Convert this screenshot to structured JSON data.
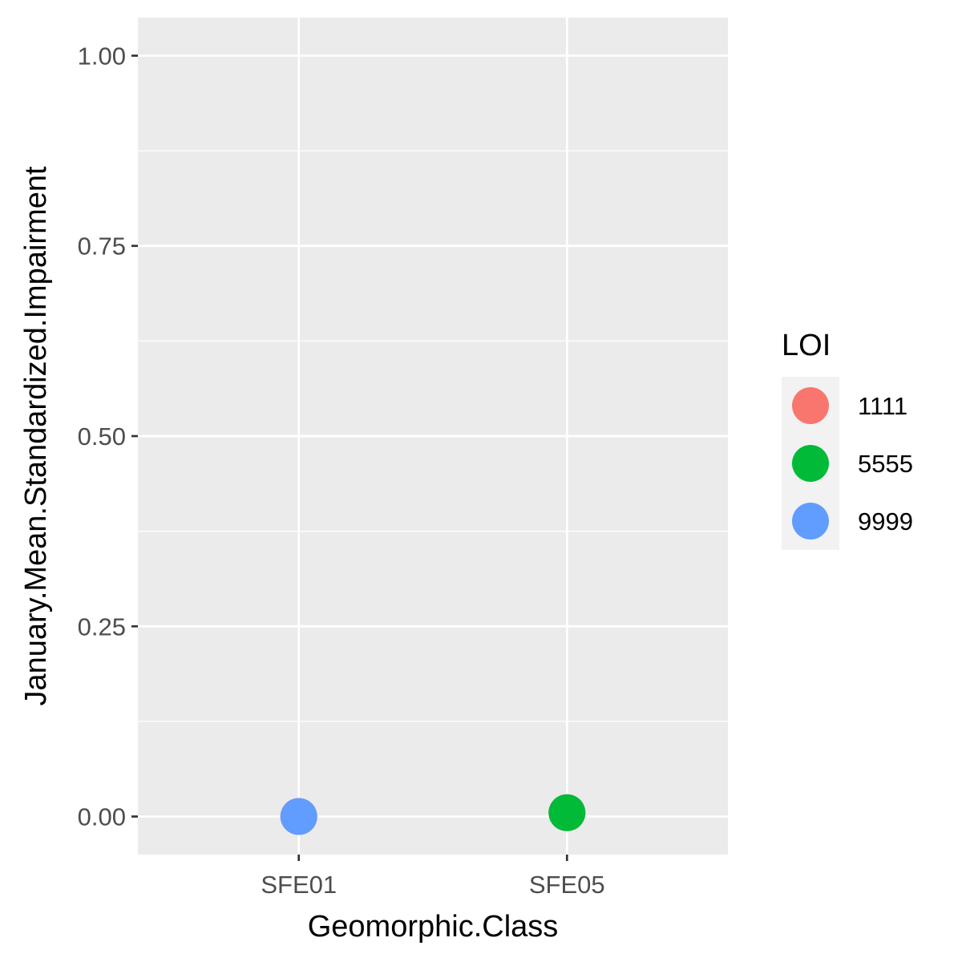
{
  "chart_data": {
    "type": "scatter",
    "xlabel": "Geomorphic.Class",
    "ylabel": "January.Mean.Standardized.Impairment",
    "x_categories": [
      "SFE01",
      "SFE05"
    ],
    "ylim": [
      -0.05,
      1.05
    ],
    "y_ticks": [
      0.0,
      0.25,
      0.5,
      0.75,
      1.0
    ],
    "y_tick_labels": [
      "0.00",
      "0.25",
      "0.50",
      "0.75",
      "1.00"
    ],
    "y_minor_ticks": [
      0.125,
      0.375,
      0.625,
      0.875
    ],
    "grid": true,
    "legend": {
      "title": "LOI",
      "placement": "right",
      "entries": [
        {
          "label": "1111",
          "color": "#F8766D"
        },
        {
          "label": "5555",
          "color": "#00BA38"
        },
        {
          "label": "9999",
          "color": "#619CFF"
        }
      ]
    },
    "points": [
      {
        "x": "SFE01",
        "y": 0.0,
        "group": "1111"
      },
      {
        "x": "SFE01",
        "y": 0.0,
        "group": "9999"
      },
      {
        "x": "SFE05",
        "y": 0.005,
        "group": "1111"
      },
      {
        "x": "SFE05",
        "y": 0.005,
        "group": "5555"
      }
    ]
  },
  "colors": {
    "panel_background": "#EBEBEB",
    "grid_line": "#FFFFFF",
    "tick_mark": "#333333",
    "legend_key_background": "#F2F2F2"
  }
}
